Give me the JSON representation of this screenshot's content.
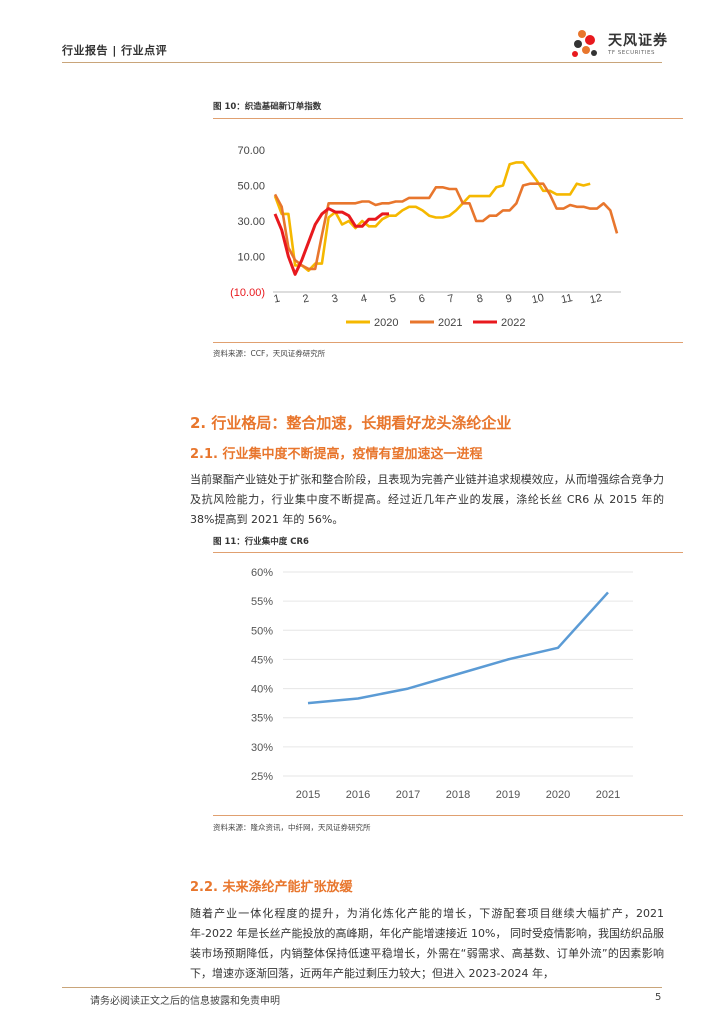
{
  "header": {
    "category": "行业报告 | 行业点评",
    "brand_cn": "天风证券",
    "brand_en": "TF SECURITIES"
  },
  "figure10": {
    "title": "图 10：织造基础新订单指数",
    "source": "资料来源：CCF，天风证券研究所"
  },
  "figure11": {
    "title": "图 11：行业集中度 CR6",
    "source": "资料来源：隆众资讯，中纤网，天风证券研究所"
  },
  "section": {
    "h1": "2. 行业格局：整合加速，长期看好龙头涤纶企业",
    "h2_1": "2.1. 行业集中度不断提高，疫情有望加速这一进程",
    "para1": "当前聚酯产业链处于扩张和整合阶段，且表现为完善产业链并追求规模效应，从而增强综合竞争力及抗风险能力，行业集中度不断提高。经过近几年产业的发展，涤纶长丝 CR6 从 2015 年的 38%提高到 2021 年的 56%。",
    "h2_2": "2.2. 未来涤纶产能扩张放缓",
    "para2": "随着产业一体化程度的提升，为消化炼化产能的增长，下游配套项目继续大幅扩产，2021 年-2022 年是长丝产能投放的高峰期，年化产能增速接近 10%， 同时受疫情影响，我国纺织品服装市场预期降低，内销整体保持低速平稳增长，外需在“弱需求、高基数、订单外流”的因素影响下，增速亦逐渐回落，近两年产能过剩压力较大；但进入 2023-2024 年，"
  },
  "footer": {
    "disclaimer": "请务必阅读正文之后的信息披露和免责申明",
    "page": "5"
  },
  "chart_data": [
    {
      "type": "line",
      "x_ticks": [
        "1",
        "2",
        "3",
        "4",
        "5",
        "6",
        "7",
        "8",
        "9",
        "10",
        "11",
        "12"
      ],
      "y_ticks": [
        "70.00",
        "50.00",
        "30.00",
        "10.00",
        "(10.00)"
      ],
      "ylim": [
        -10,
        70
      ],
      "series": [
        {
          "name": "2020",
          "color": "#f5b800",
          "values": [
            44,
            34,
            34,
            5,
            5,
            2,
            6,
            6,
            32,
            35,
            28,
            30,
            26,
            30,
            27,
            27,
            31,
            33,
            33,
            36,
            38,
            38,
            36,
            33,
            32,
            32,
            33,
            36,
            40,
            44,
            44,
            44,
            44,
            49,
            50,
            62,
            63,
            63,
            58,
            53,
            47,
            47,
            45,
            45,
            45,
            51,
            50,
            51
          ]
        },
        {
          "name": "2021",
          "color": "#e8762d",
          "values": [
            45,
            38,
            15,
            8,
            5,
            3,
            3,
            22,
            40,
            40,
            40,
            40,
            40,
            41,
            41,
            39,
            40,
            40,
            41,
            41,
            43,
            43,
            43,
            43,
            49,
            49,
            48,
            48,
            40,
            40,
            30,
            30,
            33,
            33,
            36,
            36,
            40,
            50,
            51,
            51,
            51,
            45,
            37,
            37,
            39,
            38,
            38,
            37,
            37,
            40,
            36,
            23
          ]
        },
        {
          "name": "2022",
          "color": "#e8191e",
          "values": [
            34,
            25,
            10,
            0,
            8,
            18,
            28,
            34,
            37,
            35,
            35,
            33,
            27,
            27,
            31,
            31,
            34,
            34
          ]
        }
      ]
    },
    {
      "type": "line",
      "categories": [
        "2015",
        "2016",
        "2017",
        "2018",
        "2019",
        "2020",
        "2021"
      ],
      "y_ticks": [
        "60%",
        "55%",
        "50%",
        "45%",
        "40%",
        "35%",
        "30%",
        "25%"
      ],
      "ylim": [
        25,
        60
      ],
      "series": [
        {
          "color": "#5b9bd5",
          "values": [
            37.5,
            38.3,
            40.0,
            42.5,
            45.0,
            47.0,
            56.5
          ]
        }
      ]
    }
  ]
}
